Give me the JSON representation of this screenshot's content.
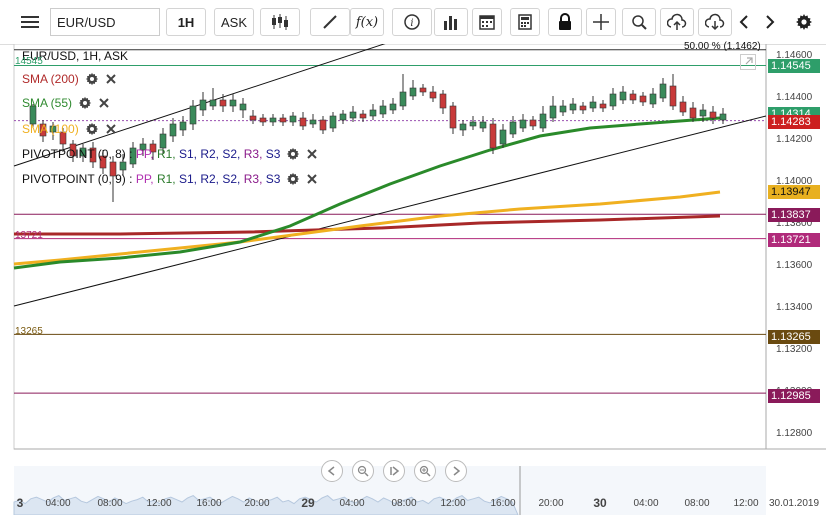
{
  "toolbar": {
    "symbol_value": "EUR/USD",
    "interval_label": "1H",
    "price_type_label": "ASK",
    "buttons": [
      "menu-icon",
      "candles-icon",
      "draw-line-icon",
      "function-icon",
      "info-icon",
      "volume-bars-icon",
      "calendar-icon",
      "calculator-icon",
      "lock-icon",
      "crosshair-icon",
      "zoom-icon",
      "upload-icon",
      "download-icon",
      "chevron-left-icon",
      "chevron-right-icon",
      "gear-icon"
    ],
    "function_label": "f(x)"
  },
  "chart": {
    "header_title": "EUR/USD, 1H, ASK",
    "fib_label": "50.00 % (1.1462)",
    "legend": [
      {
        "label": "SMA (200)",
        "color": "#b02a2a"
      },
      {
        "label": "SMA (55)",
        "color": "#2f8a2f"
      },
      {
        "label": "SMA (100)",
        "color": "#f0b020"
      }
    ],
    "pivot1": {
      "prefix": "PIVOTPOINT (0, 8) : ",
      "items": [
        "PP,",
        "R1,",
        "S1,",
        "R2,",
        "S2,",
        "R3,",
        "S3"
      ]
    },
    "pivot2": {
      "prefix": "PIVOTPOINT (0, 9) : ",
      "items": [
        "PP,",
        "R1,",
        "S1,",
        "R2,",
        "S2,",
        "R3,",
        "S3"
      ]
    },
    "pivot_colors": [
      "#b030b0",
      "#2a7a2a",
      "#1a1a8a",
      "#1a1a8a",
      "#1a1a8a",
      "#8a1a8a",
      "#1a1a8a"
    ],
    "price_axis": [
      "1.14600",
      "1.14400",
      "1.14200",
      "1.14000",
      "1.13800",
      "1.13600",
      "1.13400",
      "1.13200",
      "1.13000",
      "1.12800"
    ],
    "price_tags": [
      {
        "value": "1.14545",
        "color": "#2e9e6a"
      },
      {
        "value": "1.14314",
        "color": "#2e9e6a"
      },
      {
        "value": "1.14283",
        "color": "#cc2020"
      },
      {
        "value": "1.13947",
        "color": "#e8b020"
      },
      {
        "value": "1.13837",
        "color": "#8a1a5a"
      },
      {
        "value": "1.13721",
        "color": "#b02a7a"
      },
      {
        "value": "1.13265",
        "color": "#6a4a10"
      },
      {
        "value": "1.12985",
        "color": "#8a1a5a"
      }
    ],
    "line_labels": [
      {
        "text": "14545",
        "color": "#2e9e6a"
      },
      {
        "text": "13721",
        "color": "#b02a7a"
      },
      {
        "text": "13265",
        "color": "#7a5a10"
      }
    ],
    "time_axis": [
      "3",
      "04:00",
      "08:00",
      "12:00",
      "16:00",
      "20:00",
      "29",
      "04:00",
      "08:00",
      "12:00",
      "16:00",
      "20:00",
      "30",
      "04:00",
      "08:00",
      "12:00",
      "30.01.2019"
    ]
  }
}
